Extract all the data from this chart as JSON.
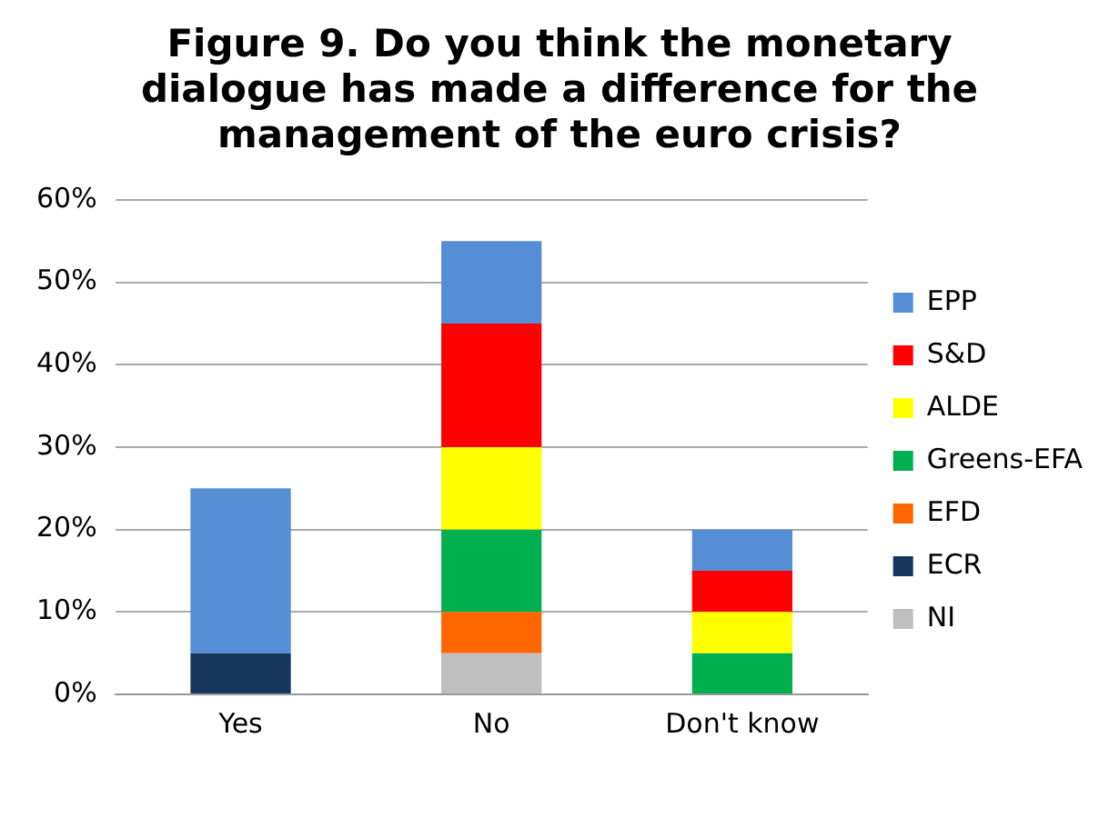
{
  "chart_data": {
    "type": "bar",
    "stacked": true,
    "title": "Figure 9. Do you think the monetary dialogue has made a difference for the management of the euro crisis?",
    "categories": [
      "Yes",
      "No",
      "Don't know"
    ],
    "series": [
      {
        "name": "NI",
        "color": "#bfbfbf",
        "values": [
          0,
          5,
          0
        ]
      },
      {
        "name": "ECR",
        "color": "#17365d",
        "values": [
          5,
          0,
          0
        ]
      },
      {
        "name": "EFD",
        "color": "#ff6600",
        "values": [
          0,
          5,
          0
        ]
      },
      {
        "name": "Greens-EFA",
        "color": "#00b050",
        "values": [
          0,
          10,
          5
        ]
      },
      {
        "name": "ALDE",
        "color": "#ffff00",
        "values": [
          0,
          10,
          5
        ]
      },
      {
        "name": "S&D",
        "color": "#ff0000",
        "values": [
          0,
          15,
          5
        ]
      },
      {
        "name": "EPP",
        "color": "#558ed5",
        "values": [
          20,
          10,
          5
        ]
      }
    ],
    "ylim": [
      0,
      60
    ],
    "yticks": [
      {
        "value": 0,
        "label": "0%"
      },
      {
        "value": 10,
        "label": "10%"
      },
      {
        "value": 20,
        "label": "20%"
      },
      {
        "value": 30,
        "label": "30%"
      },
      {
        "value": 40,
        "label": "40%"
      },
      {
        "value": 50,
        "label": "50%"
      },
      {
        "value": 60,
        "label": "60%"
      }
    ],
    "grid": "y",
    "legend": "right"
  }
}
